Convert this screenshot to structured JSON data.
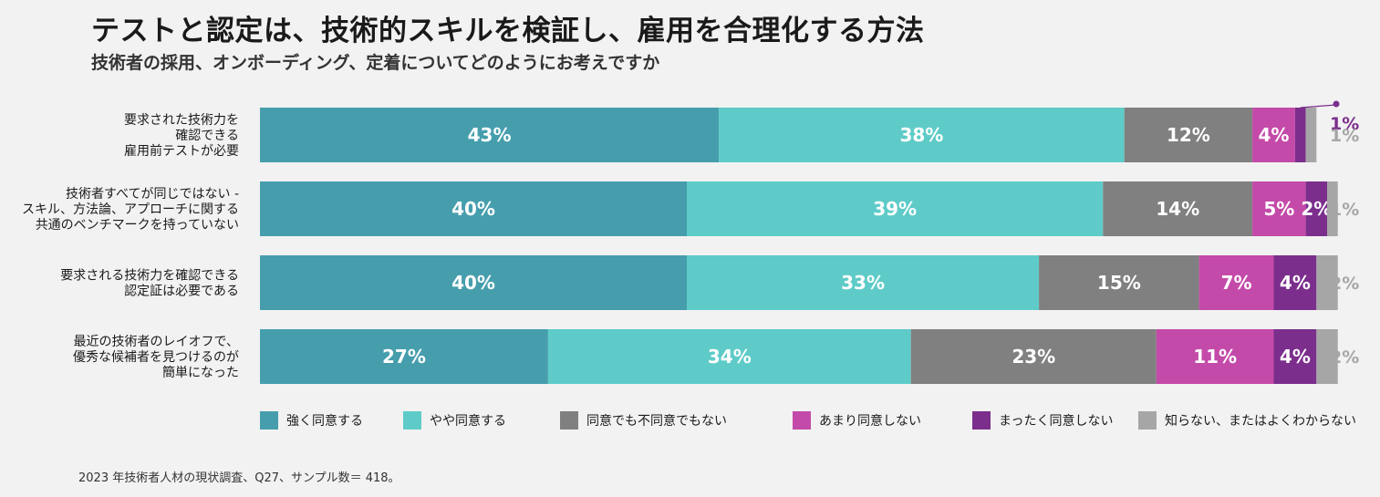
{
  "title": "テストと認定は、技術的スキルを検証し、雇用を合理化する方法",
  "subtitle": "技術者の採用、オンボーディング、定着についてどのようにお考えですか",
  "footnote": "2023 年技術者人材の現状調査、Q27、サンプル数＝ 418。",
  "chart_data": {
    "type": "bar",
    "orientation": "horizontal",
    "stacked": true,
    "value_unit": "%",
    "categories": [
      [
        "要求された技術力を",
        "確認できる",
        "雇用前テストが必要"
      ],
      [
        "技術者すべてが同じではない -",
        "スキル、方法論、アプローチに関する",
        "共通のベンチマークを持っていない"
      ],
      [
        "要求される技術力を確認できる",
        "認定証は必要である"
      ],
      [
        "最近の技術者のレイオフで、",
        "優秀な候補者を見つけるのが",
        "簡単になった"
      ]
    ],
    "series": [
      {
        "name": "強く同意する",
        "color": "#469ead",
        "values": [
          43,
          40,
          40,
          27
        ]
      },
      {
        "name": "やや同意する",
        "color": "#5ecbc8",
        "values": [
          38,
          39,
          33,
          34
        ]
      },
      {
        "name": "同意でも不同意でもない",
        "color": "#808080",
        "values": [
          12,
          14,
          15,
          23
        ]
      },
      {
        "name": "あまり同意しない",
        "color": "#c44aa9",
        "values": [
          4,
          5,
          7,
          11
        ]
      },
      {
        "name": "まったく同意しない",
        "color": "#7b2e8c",
        "values": [
          1,
          2,
          4,
          4
        ]
      },
      {
        "name": "知らない、またはよくわからない",
        "color": "#a6a6a6",
        "values": [
          1,
          1,
          2,
          2
        ]
      }
    ],
    "legend_position": "bottom",
    "grid": false
  }
}
